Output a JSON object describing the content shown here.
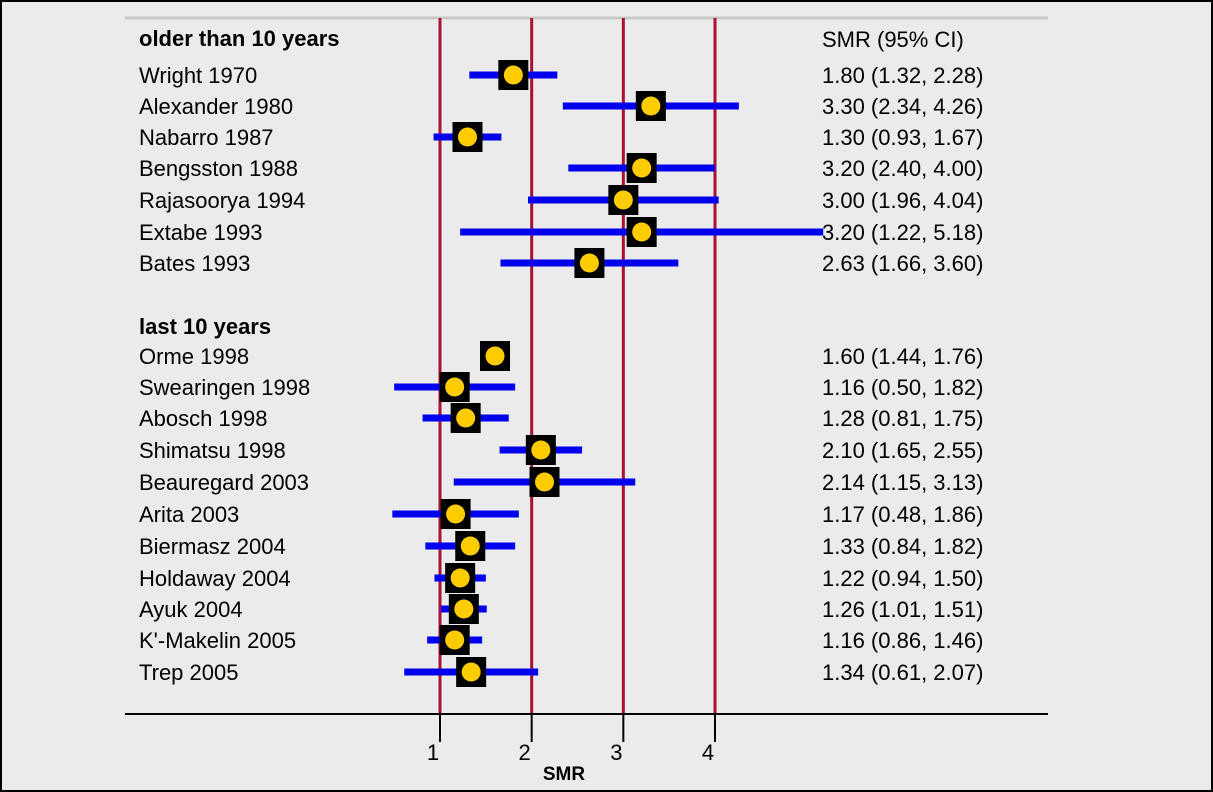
{
  "chart_data": {
    "type": "forest",
    "estimate_header": "SMR (95% CI)",
    "xlabel": "SMR",
    "x_ticks": [
      1,
      2,
      3,
      4
    ],
    "reference_lines": [
      1,
      2,
      3,
      4
    ],
    "colors": {
      "ci_line": "#0000ee",
      "marker_box": "#000000",
      "marker_dot": "#ffcc00",
      "reference_line": "#aa1133",
      "panel_bg": "#ebebeb"
    },
    "groups": [
      {
        "label": "older than 10 years",
        "studies": [
          {
            "name": "Wright 1970",
            "smr": 1.8,
            "lo": 1.32,
            "hi": 2.28,
            "text": "1.80 (1.32, 2.28)"
          },
          {
            "name": "Alexander 1980",
            "smr": 3.3,
            "lo": 2.34,
            "hi": 4.26,
            "text": "3.30 (2.34, 4.26)"
          },
          {
            "name": "Nabarro 1987",
            "smr": 1.3,
            "lo": 0.93,
            "hi": 1.67,
            "text": "1.30 (0.93, 1.67)"
          },
          {
            "name": "Bengsston 1988",
            "smr": 3.2,
            "lo": 2.4,
            "hi": 4.0,
            "text": "3.20 (2.40, 4.00)"
          },
          {
            "name": "Rajasoorya 1994",
            "smr": 3.0,
            "lo": 1.96,
            "hi": 4.04,
            "text": "3.00 (1.96, 4.04)"
          },
          {
            "name": "Extabe 1993",
            "smr": 3.2,
            "lo": 1.22,
            "hi": 5.18,
            "text": "3.20 (1.22, 5.18)"
          },
          {
            "name": "Bates 1993",
            "smr": 2.63,
            "lo": 1.66,
            "hi": 3.6,
            "text": "2.63 (1.66, 3.60)"
          }
        ]
      },
      {
        "label": "last 10 years",
        "studies": [
          {
            "name": "Orme 1998",
            "smr": 1.6,
            "lo": 1.44,
            "hi": 1.76,
            "text": "1.60 (1.44, 1.76)"
          },
          {
            "name": "Swearingen 1998",
            "smr": 1.16,
            "lo": 0.5,
            "hi": 1.82,
            "text": "1.16 (0.50, 1.82)"
          },
          {
            "name": "Abosch 1998",
            "smr": 1.28,
            "lo": 0.81,
            "hi": 1.75,
            "text": "1.28 (0.81, 1.75)"
          },
          {
            "name": "Shimatsu 1998",
            "smr": 2.1,
            "lo": 1.65,
            "hi": 2.55,
            "text": "2.10 (1.65, 2.55)"
          },
          {
            "name": "Beauregard 2003",
            "smr": 2.14,
            "lo": 1.15,
            "hi": 3.13,
            "text": "2.14 (1.15, 3.13)"
          },
          {
            "name": "Arita 2003",
            "smr": 1.17,
            "lo": 0.48,
            "hi": 1.86,
            "text": "1.17 (0.48, 1.86)"
          },
          {
            "name": "Biermasz 2004",
            "smr": 1.33,
            "lo": 0.84,
            "hi": 1.82,
            "text": "1.33 (0.84, 1.82)"
          },
          {
            "name": "Holdaway 2004",
            "smr": 1.22,
            "lo": 0.94,
            "hi": 1.5,
            "text": "1.22 (0.94, 1.50)"
          },
          {
            "name": "Ayuk 2004",
            "smr": 1.26,
            "lo": 1.01,
            "hi": 1.51,
            "text": "1.26 (1.01, 1.51)"
          },
          {
            "name": "K'-Makelin 2005",
            "smr": 1.16,
            "lo": 0.86,
            "hi": 1.46,
            "text": "1.16 (0.86, 1.46)"
          },
          {
            "name": "Trep 2005",
            "smr": 1.34,
            "lo": 0.61,
            "hi": 2.07,
            "text": "1.34 (0.61, 2.07)"
          }
        ]
      }
    ]
  }
}
